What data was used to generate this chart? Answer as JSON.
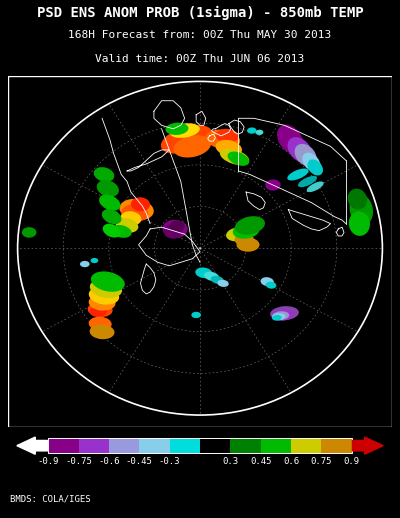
{
  "title_line1": "PSD ENS ANOM PROB (1sigma) - 850mb TEMP",
  "title_line2": "168H Forecast from: 00Z Thu MAY 30 2013",
  "title_line3": "Valid time: 00Z Thu JUN 06 2013",
  "footer": "BMDS: COLA/IGES",
  "bg_color": "#000000",
  "text_color": "#ffffff",
  "colorbar_colors": [
    "#880088",
    "#9932CC",
    "#9999DD",
    "#87CEEB",
    "#00DDDD",
    "#000000",
    "#008000",
    "#00BB00",
    "#CCCC00",
    "#CC8800"
  ],
  "colorbar_tick_labels": [
    "-0.9",
    "-0.75",
    "-0.6",
    "-0.45",
    "-0.3",
    "0.3",
    "0.45",
    "0.6",
    "0.75",
    "0.9"
  ],
  "map_border_color": "#ffffff",
  "fig_width": 4.0,
  "fig_height": 5.18,
  "dpi": 100,
  "title_fontsize": 10.0,
  "subtitle_fontsize": 8.0,
  "footer_fontsize": 6.5
}
